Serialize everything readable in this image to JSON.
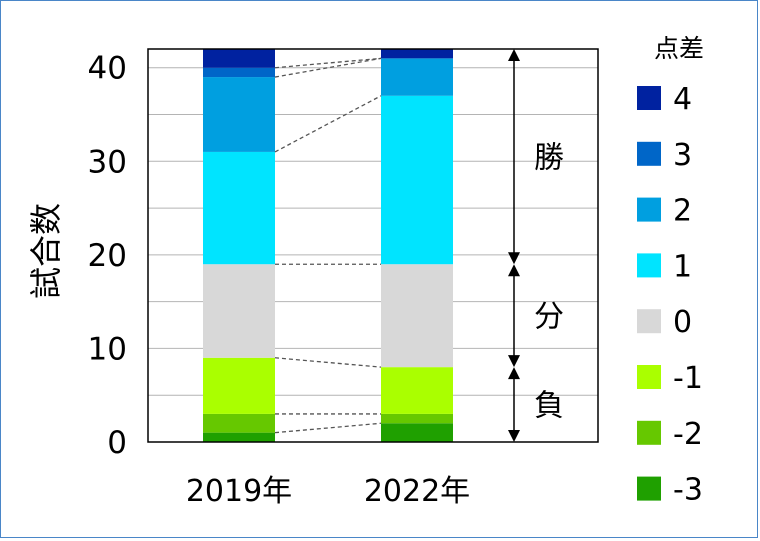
{
  "chart_data": {
    "type": "bar",
    "stacked": true,
    "ylabel": "試合数",
    "ylim": [
      0,
      42
    ],
    "yticks": [
      0,
      10,
      20,
      30,
      40
    ],
    "grid": true,
    "categories": [
      "2019年",
      "2022年"
    ],
    "legend_title": "点差",
    "legend_position": "right",
    "series": [
      {
        "name": "-3",
        "color": "#1fa000",
        "values": [
          1,
          2
        ]
      },
      {
        "name": "-2",
        "color": "#66c800",
        "values": [
          2,
          1
        ]
      },
      {
        "name": "-1",
        "color": "#aaff00",
        "values": [
          6,
          5
        ]
      },
      {
        "name": "0",
        "color": "#d8d8d8",
        "values": [
          10,
          11
        ]
      },
      {
        "name": "1",
        "color": "#00e4ff",
        "values": [
          12,
          18
        ]
      },
      {
        "name": "2",
        "color": "#009fe0",
        "values": [
          8,
          4
        ]
      },
      {
        "name": "3",
        "color": "#0066c8",
        "values": [
          1,
          0
        ]
      },
      {
        "name": "4",
        "color": "#0022a0",
        "values": [
          2,
          1
        ]
      }
    ],
    "annotations": [
      {
        "label": "勝",
        "from": 19,
        "to": 42
      },
      {
        "label": "分",
        "from": 8,
        "to": 19
      },
      {
        "label": "負",
        "from": 0,
        "to": 8
      }
    ]
  }
}
